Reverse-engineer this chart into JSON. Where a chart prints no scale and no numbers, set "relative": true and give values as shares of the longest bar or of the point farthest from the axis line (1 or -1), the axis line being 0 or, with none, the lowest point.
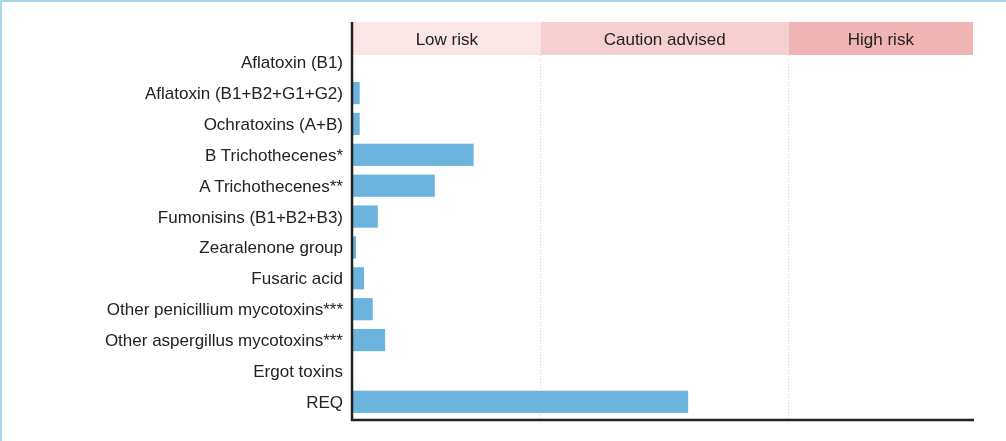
{
  "chart_data": {
    "type": "bar",
    "orientation": "horizontal",
    "relative": true,
    "categories": [
      "Aflatoxin (B1)",
      "Aflatoxin (B1+B2+G1+G2)",
      "Ochratoxins (A+B)",
      "B Trichothecenes*",
      "A Trichothecenes**",
      "Fumonisins (B1+B2+B3)",
      "Zearalenone group",
      "Fusaric acid",
      "Other penicillium mycotoxins***",
      "Other aspergillus mycotoxins***",
      "Ergot toxins",
      "REQ"
    ],
    "values": [
      0,
      0.02,
      0.02,
      0.36,
      0.244,
      0.074,
      0.009,
      0.033,
      0.059,
      0.096,
      0,
      1
    ],
    "color": "#6cb4de",
    "bands": [
      {
        "axis": "x",
        "from": 0,
        "to": 0.56,
        "label": "Low risk",
        "color": "#fbe6e7"
      },
      {
        "axis": "x",
        "from": 0.56,
        "to": 1.3,
        "label": "Caution advised",
        "color": "#f6d0d1"
      },
      {
        "axis": "x",
        "from": 1.3,
        "to": 1.85,
        "label": "High risk",
        "color": "#f1b4b5"
      }
    ],
    "ref_lines": [
      {
        "axis": "x",
        "value": 0.56,
        "color": "#cccccc",
        "line_style": "dotted"
      },
      {
        "axis": "x",
        "value": 1.3,
        "color": "#cccccc",
        "line_style": "dotted"
      }
    ]
  }
}
